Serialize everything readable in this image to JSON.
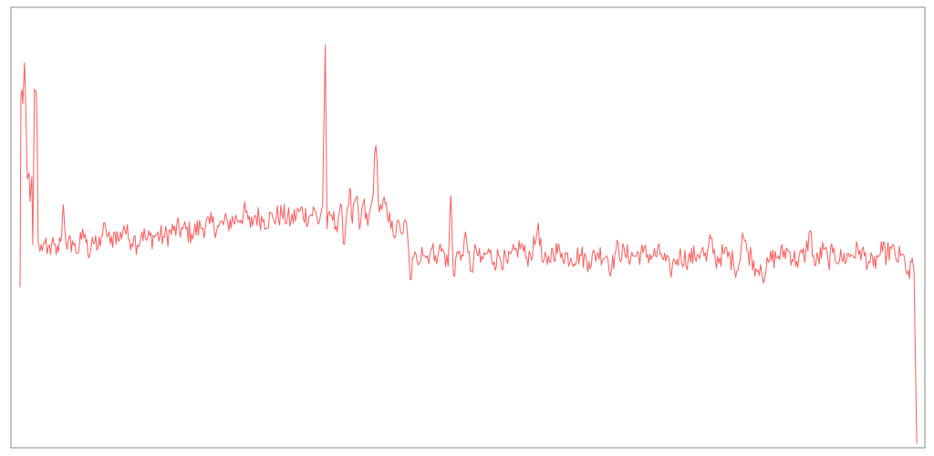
{
  "chart_data": {
    "type": "line",
    "title": "",
    "xlabel": "",
    "ylabel": "",
    "xlim": [
      0,
      1000
    ],
    "ylim": [
      0,
      100
    ],
    "grid": false,
    "legend": "none",
    "series": [
      {
        "color": "#ff5a5a",
        "anchors": [
          [
            0,
            36.3
          ],
          [
            1,
            80.2
          ],
          [
            2,
            81.5
          ],
          [
            3,
            78.4
          ],
          [
            5,
            87.7
          ],
          [
            6,
            80.5
          ],
          [
            8,
            61.2
          ],
          [
            10,
            62.5
          ],
          [
            11,
            56.0
          ],
          [
            13,
            61.6
          ],
          [
            14,
            46.1
          ],
          [
            16,
            81.7
          ],
          [
            18,
            80.8
          ],
          [
            19,
            71.4
          ],
          [
            20,
            46.7
          ],
          [
            22,
            44.5
          ],
          [
            26,
            46.5
          ],
          [
            30,
            44.0
          ],
          [
            35,
            46.2
          ],
          [
            40,
            43.8
          ],
          [
            45,
            46.8
          ],
          [
            48,
            55.2
          ],
          [
            52,
            45.0
          ],
          [
            58,
            47.0
          ],
          [
            62,
            44.2
          ],
          [
            68,
            47.2
          ],
          [
            72,
            48.5
          ],
          [
            75,
            43.9
          ],
          [
            80,
            47.8
          ],
          [
            85,
            44.8
          ],
          [
            90,
            48.0
          ],
          [
            95,
            49.8
          ],
          [
            100,
            46.2
          ],
          [
            105,
            49.0
          ],
          [
            110,
            47.0
          ],
          [
            115,
            50.5
          ],
          [
            120,
            47.4
          ],
          [
            126,
            47.8
          ],
          [
            130,
            46.0
          ],
          [
            135,
            49.0
          ],
          [
            140,
            47.1
          ],
          [
            150,
            48.2
          ],
          [
            160,
            47.8
          ],
          [
            170,
            49.3
          ],
          [
            180,
            49.6
          ],
          [
            190,
            48.6
          ],
          [
            200,
            50.1
          ],
          [
            210,
            50.8
          ],
          [
            220,
            50.2
          ],
          [
            230,
            51.2
          ],
          [
            240,
            51.9
          ],
          [
            250,
            53.5
          ],
          [
            255,
            50.0
          ],
          [
            260,
            52.8
          ],
          [
            270,
            51.8
          ],
          [
            280,
            52.2
          ],
          [
            290,
            53.0
          ],
          [
            300,
            51.5
          ],
          [
            310,
            53.8
          ],
          [
            320,
            52.5
          ],
          [
            326,
            54.0
          ],
          [
            330,
            50.8
          ],
          [
            335,
            55.2
          ],
          [
            338,
            91.8
          ],
          [
            340,
            49.8
          ],
          [
            345,
            52.8
          ],
          [
            350,
            50.2
          ],
          [
            355,
            55.5
          ],
          [
            358,
            46.3
          ],
          [
            362,
            53.8
          ],
          [
            365,
            59.0
          ],
          [
            368,
            51.0
          ],
          [
            372,
            56.8
          ],
          [
            376,
            49.6
          ],
          [
            380,
            55.6
          ],
          [
            385,
            50.4
          ],
          [
            390,
            56.2
          ],
          [
            394,
            68.8
          ],
          [
            398,
            53.5
          ],
          [
            402,
            56.2
          ],
          [
            408,
            51.2
          ],
          [
            412,
            51.5
          ],
          [
            416,
            48.0
          ],
          [
            420,
            51.1
          ],
          [
            424,
            48.7
          ],
          [
            428,
            51.0
          ],
          [
            432,
            38.0
          ],
          [
            436,
            43.2
          ],
          [
            440,
            42.0
          ],
          [
            445,
            45.5
          ],
          [
            450,
            43.0
          ],
          [
            455,
            45.0
          ],
          [
            460,
            43.6
          ],
          [
            464,
            45.0
          ],
          [
            470,
            44.0
          ],
          [
            474,
            41.2
          ],
          [
            477,
            57.3
          ],
          [
            480,
            39.0
          ],
          [
            484,
            44.5
          ],
          [
            488,
            42.5
          ],
          [
            492,
            47.5
          ],
          [
            496,
            44.3
          ],
          [
            500,
            40.0
          ],
          [
            505,
            45.2
          ],
          [
            510,
            42.0
          ],
          [
            515,
            43.8
          ],
          [
            520,
            44.2
          ],
          [
            525,
            42.2
          ],
          [
            530,
            43.5
          ],
          [
            540,
            41.8
          ],
          [
            550,
            44.8
          ],
          [
            555,
            46.2
          ],
          [
            560,
            43.0
          ],
          [
            565,
            44.0
          ],
          [
            570,
            46.0
          ],
          [
            574,
            51.0
          ],
          [
            578,
            42.5
          ],
          [
            584,
            41.5
          ],
          [
            590,
            44.8
          ],
          [
            600,
            44.2
          ],
          [
            610,
            43.0
          ],
          [
            620,
            43.8
          ],
          [
            630,
            42.2
          ],
          [
            640,
            44.2
          ],
          [
            650,
            43.5
          ],
          [
            655,
            40.5
          ],
          [
            660,
            45.0
          ],
          [
            670,
            43.8
          ],
          [
            680,
            43.5
          ],
          [
            690,
            44.2
          ],
          [
            700,
            43.5
          ],
          [
            710,
            44.0
          ],
          [
            720,
            40.0
          ],
          [
            725,
            42.3
          ],
          [
            730,
            43.5
          ],
          [
            740,
            42.8
          ],
          [
            750,
            43.8
          ],
          [
            755,
            45.0
          ],
          [
            760,
            42.3
          ],
          [
            765,
            47.5
          ],
          [
            770,
            42.5
          ],
          [
            780,
            44.2
          ],
          [
            790,
            42.2
          ],
          [
            795,
            40.2
          ],
          [
            800,
            48.8
          ],
          [
            805,
            44.5
          ],
          [
            810,
            43.5
          ],
          [
            815,
            40.5
          ],
          [
            820,
            41.5
          ],
          [
            822,
            38.8
          ],
          [
            826,
            39.8
          ],
          [
            830,
            42.5
          ],
          [
            840,
            43.5
          ],
          [
            850,
            44.8
          ],
          [
            860,
            42.3
          ],
          [
            870,
            44.0
          ],
          [
            875,
            49.3
          ],
          [
            880,
            41.3
          ],
          [
            890,
            45.0
          ],
          [
            895,
            42.3
          ],
          [
            900,
            44.2
          ],
          [
            910,
            42.8
          ],
          [
            920,
            43.8
          ],
          [
            930,
            44.8
          ],
          [
            940,
            42.2
          ],
          [
            945,
            41.2
          ],
          [
            950,
            43.3
          ],
          [
            955,
            44.5
          ],
          [
            960,
            43.8
          ],
          [
            965,
            45.2
          ],
          [
            970,
            42.8
          ],
          [
            975,
            43.5
          ],
          [
            980,
            42.2
          ],
          [
            985,
            38.2
          ],
          [
            988,
            43.0
          ],
          [
            990,
            40.0
          ],
          [
            993,
            0.5
          ]
        ]
      }
    ]
  }
}
